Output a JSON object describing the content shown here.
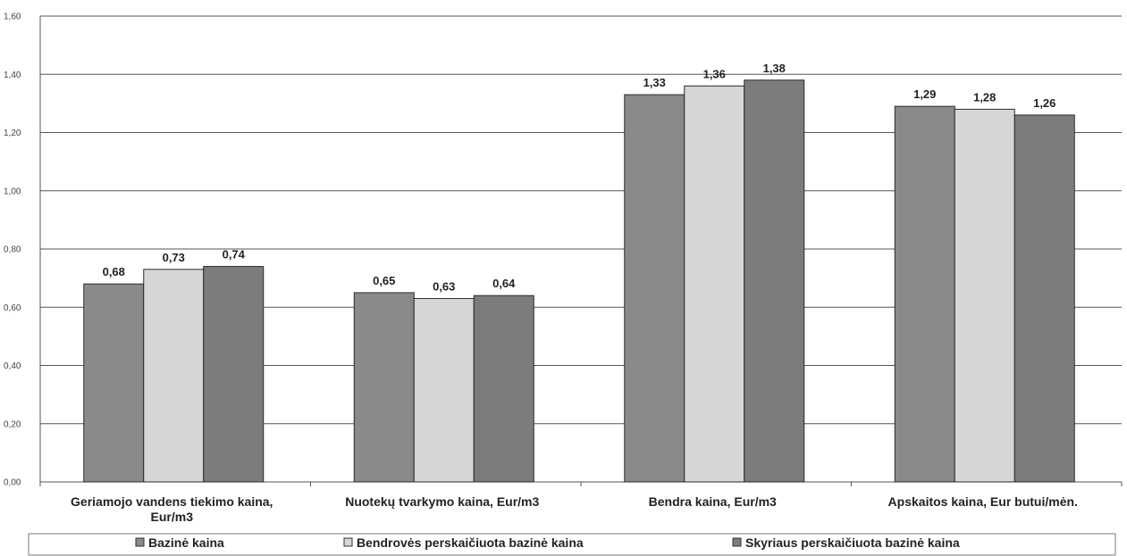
{
  "chart_data": {
    "type": "bar",
    "categories": [
      [
        "Geriamojo vandens tiekimo kaina,",
        "Eur/m3"
      ],
      [
        "Nuotekų tvarkymo kaina, Eur/m3"
      ],
      [
        "Bendra kaina, Eur/m3"
      ],
      [
        "Apskaitos kaina, Eur butui/mėn."
      ]
    ],
    "series": [
      {
        "name": "Bazinė kaina",
        "color": "#8a8a8a",
        "values": [
          0.68,
          0.65,
          1.33,
          1.29
        ],
        "labels": [
          "0,68",
          "0,65",
          "1,33",
          "1,29"
        ]
      },
      {
        "name": "Bendrovės perskaičiuota bazinė kaina",
        "color": "#d6d6d6",
        "values": [
          0.73,
          0.63,
          1.36,
          1.28
        ],
        "labels": [
          "0,73",
          "0,63",
          "1,36",
          "1,28"
        ]
      },
      {
        "name": "Skyriaus perskaičiuota bazinė kaina",
        "color": "#7c7c7c",
        "values": [
          0.74,
          0.64,
          1.38,
          1.26
        ],
        "labels": [
          "0,74",
          "0,64",
          "1,38",
          "1,26"
        ]
      }
    ],
    "ylim": [
      0,
      1.6
    ],
    "yticks": [
      0,
      0.2,
      0.4,
      0.6,
      0.8,
      1.0,
      1.2,
      1.4,
      1.6
    ],
    "ytick_labels": [
      "0,00",
      "0,20",
      "0,40",
      "0,60",
      "0,80",
      "1,00",
      "1,20",
      "1,40",
      "1,60"
    ],
    "grid": true,
    "legend_position": "bottom"
  }
}
